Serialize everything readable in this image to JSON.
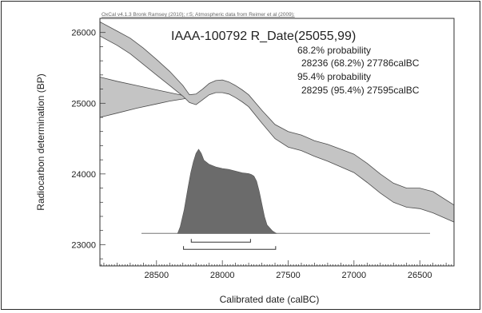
{
  "chart_data": {
    "type": "area",
    "credit": "OxCal v4.1.3 Bronk Ramsey (2010); r:5; Atmospheric data from Reimer et al (2009);",
    "title": "IAAA-100792 R_Date(25055,99)",
    "annotations": [
      "68.2% probability",
      "28236 (68.2%) 27786calBC",
      "95.4% probability",
      "28295 (95.4%) 27595calBC"
    ],
    "xlabel": "Calibrated date (calBC)",
    "ylabel": "Radiocarbon determination (BP)",
    "xlim": [
      28930,
      26240
    ],
    "ylim": [
      22700,
      26200
    ],
    "x_ticks": [
      28500,
      28000,
      27500,
      27000,
      26500
    ],
    "x_tick_labels": [
      "28500",
      "28000",
      "27500",
      "27000",
      "26500"
    ],
    "y_ticks": [
      26000,
      25000,
      24000,
      23000
    ],
    "y_tick_labels": [
      "26000",
      "25000",
      "24000",
      "23000"
    ],
    "calibration_band": {
      "x": [
        28930,
        28800,
        28700,
        28600,
        28500,
        28400,
        28300,
        28250,
        28200,
        28150,
        28100,
        28050,
        28000,
        27950,
        27900,
        27850,
        27800,
        27700,
        27600,
        27500,
        27400,
        27300,
        27200,
        27100,
        27000,
        26900,
        26800,
        26700,
        26600,
        26500,
        26400,
        26240
      ],
      "upper": [
        26150,
        26020,
        25920,
        25780,
        25620,
        25450,
        25250,
        25120,
        25130,
        25200,
        25280,
        25320,
        25330,
        25300,
        25250,
        25190,
        25120,
        24900,
        24700,
        24600,
        24550,
        24470,
        24420,
        24350,
        24280,
        24150,
        24000,
        23870,
        23800,
        23800,
        23750,
        23560
      ],
      "lower": [
        25950,
        25820,
        25700,
        25550,
        25400,
        25250,
        25100,
        25010,
        24980,
        25050,
        25120,
        25150,
        25150,
        25130,
        25080,
        25020,
        24950,
        24720,
        24500,
        24380,
        24330,
        24250,
        24180,
        24100,
        24020,
        23880,
        23730,
        23600,
        23530,
        23510,
        23450,
        23320
      ]
    },
    "radiocarbon_band": {
      "x": [
        28930,
        28800,
        28650,
        28500,
        28400,
        28300,
        28240
      ],
      "upper": [
        25370,
        25310,
        25250,
        25190,
        25150,
        25110,
        25090
      ],
      "lower": [
        24800,
        24860,
        24930,
        24990,
        25030,
        25060,
        25080
      ]
    },
    "probability_distribution": {
      "baseline_bp": 23160,
      "x": [
        28340,
        28320,
        28290,
        28260,
        28240,
        28220,
        28200,
        28180,
        28160,
        28140,
        28100,
        28050,
        28000,
        27950,
        27900,
        27850,
        27800,
        27780,
        27760,
        27740,
        27720,
        27700,
        27680,
        27660,
        27620,
        27590
      ],
      "density": [
        0,
        0.08,
        0.28,
        0.55,
        0.72,
        0.85,
        0.95,
        1.0,
        0.95,
        0.87,
        0.82,
        0.79,
        0.77,
        0.76,
        0.74,
        0.72,
        0.71,
        0.7,
        0.68,
        0.62,
        0.5,
        0.35,
        0.2,
        0.1,
        0.03,
        0
      ]
    },
    "ranges": {
      "range_68": [
        28236,
        27786
      ],
      "range_95": [
        28295,
        27595
      ]
    },
    "colors": {
      "band_fill": "#c4c4c4",
      "band_stroke": "#4a4a4a",
      "distribution_fill": "#6b6b6b",
      "axis": "#2f2f2f",
      "text": "#222222"
    }
  }
}
